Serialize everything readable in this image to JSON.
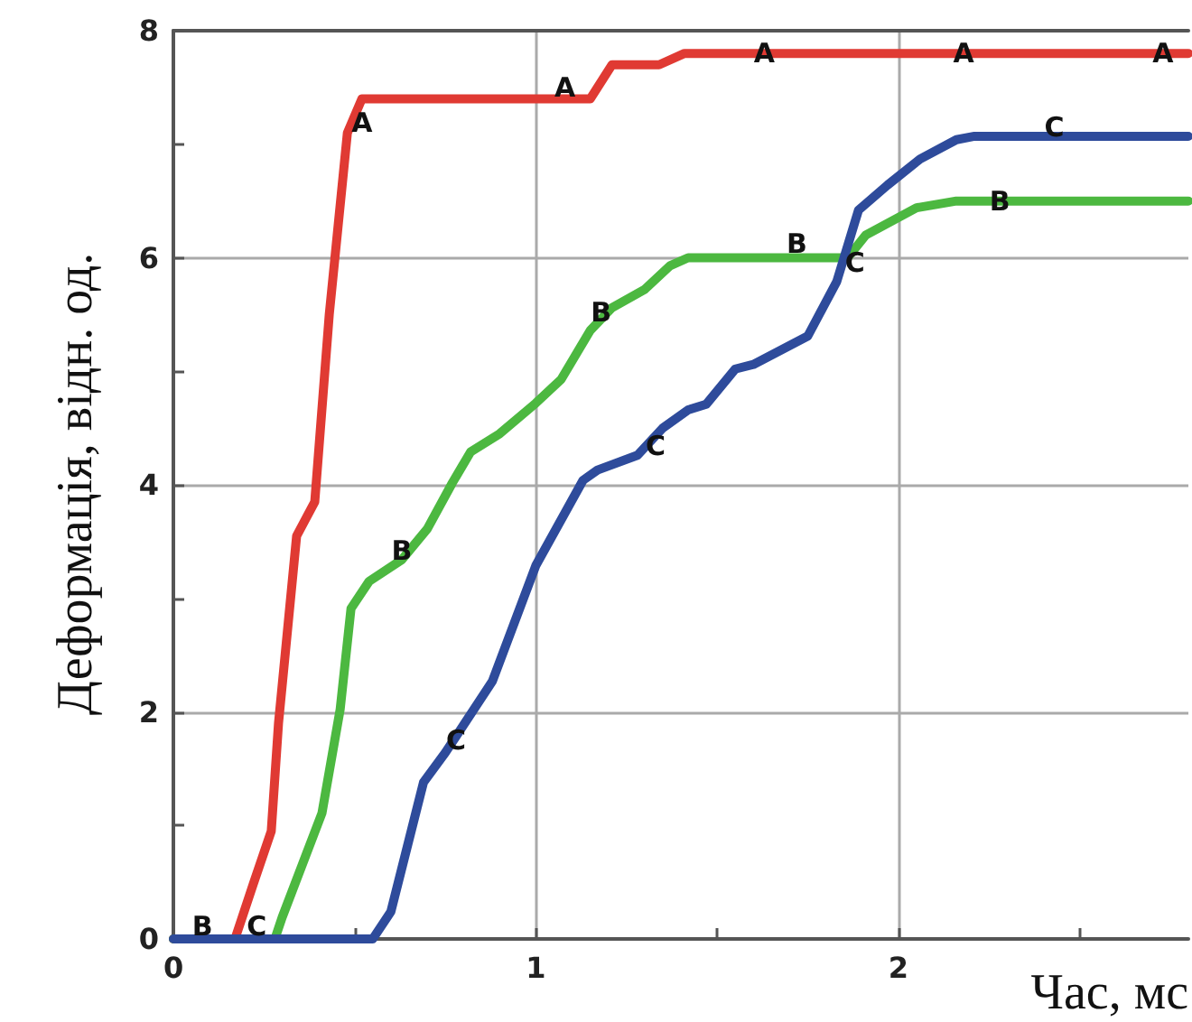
{
  "chart_data": {
    "type": "line",
    "xlabel": "Час, мс",
    "ylabel": "Деформація, відн. од.",
    "xlim": [
      0,
      2.8
    ],
    "xticks": [
      0,
      {
        "value": 0.5,
        "label": null
      },
      1,
      {
        "value": 1.5,
        "label": null
      },
      2,
      {
        "value": 2.5,
        "label": null
      }
    ],
    "ylim": [
      0,
      8
    ],
    "yticks": [
      0,
      {
        "value": 1,
        "label": null
      },
      2,
      {
        "value": 3,
        "label": null
      },
      4,
      {
        "value": 5,
        "label": null
      },
      6,
      {
        "value": 7,
        "label": null
      },
      8
    ],
    "grid": true,
    "marker": "none",
    "line_style": "solid",
    "series": [
      {
        "color": "#e03a33",
        "x": [
          0,
          0.17,
          0.22,
          0.27,
          0.29,
          0.34,
          0.39,
          0.43,
          0.48,
          0.52,
          1.15,
          1.21,
          1.34,
          1.41,
          2.8
        ],
        "values": [
          0,
          0,
          0.48,
          0.95,
          1.9,
          3.55,
          3.85,
          5.5,
          7.1,
          7.4,
          7.4,
          7.7,
          7.7,
          7.8,
          7.8
        ]
      },
      {
        "color": "#4cb840",
        "x": [
          0,
          0.28,
          0.3,
          0.41,
          0.46,
          0.49,
          0.54,
          0.63,
          0.7,
          0.77,
          0.82,
          0.9,
          1,
          1.07,
          1.15,
          1.21,
          1.3,
          1.37,
          1.42,
          1.86,
          1.91,
          2.05,
          2.16,
          2.8
        ],
        "values": [
          0,
          0,
          0.19,
          1.11,
          2.02,
          2.91,
          3.15,
          3.34,
          3.61,
          4.02,
          4.29,
          4.45,
          4.72,
          4.93,
          5.36,
          5.56,
          5.72,
          5.93,
          6,
          6,
          6.2,
          6.44,
          6.5,
          6.5
        ]
      },
      {
        "color": "#2e4b9b",
        "x": [
          0,
          0.55,
          0.6,
          0.69,
          0.75,
          0.88,
          1,
          1.13,
          1.17,
          1.28,
          1.35,
          1.42,
          1.47,
          1.55,
          1.6,
          1.75,
          1.83,
          1.89,
          1.97,
          2.06,
          2.16,
          2.21,
          2.8
        ],
        "values": [
          0,
          0,
          0.24,
          1.38,
          1.64,
          2.27,
          3.29,
          4.04,
          4.13,
          4.26,
          4.5,
          4.66,
          4.71,
          5.02,
          5.06,
          5.31,
          5.79,
          6.42,
          6.64,
          6.87,
          7.04,
          7.07,
          7.07
        ]
      }
    ],
    "annotations": [
      {
        "text": "A",
        "x": 0.52,
        "y": 7.19
      },
      {
        "text": "A",
        "x": 1.08,
        "y": 7.5
      },
      {
        "text": "A",
        "x": 1.63,
        "y": 7.8
      },
      {
        "text": "A",
        "x": 2.18,
        "y": 7.8
      },
      {
        "text": "A",
        "x": 2.73,
        "y": 7.8
      },
      {
        "text": "B",
        "x": 0.08,
        "y": 0.11
      },
      {
        "text": "B",
        "x": 0.63,
        "y": 3.42
      },
      {
        "text": "B",
        "x": 1.18,
        "y": 5.52
      },
      {
        "text": "B",
        "x": 1.72,
        "y": 6.12
      },
      {
        "text": "B",
        "x": 2.28,
        "y": 6.5
      },
      {
        "text": "C",
        "x": 0.23,
        "y": 0.11
      },
      {
        "text": "C",
        "x": 0.78,
        "y": 1.75
      },
      {
        "text": "C",
        "x": 1.33,
        "y": 4.34
      },
      {
        "text": "C",
        "x": 1.88,
        "y": 5.96
      },
      {
        "text": "C",
        "x": 2.43,
        "y": 7.15
      }
    ]
  }
}
